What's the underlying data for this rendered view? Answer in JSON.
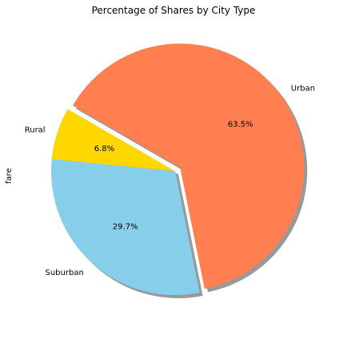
{
  "chart_data": {
    "type": "pie",
    "title": "Percentage of Shares by City Type",
    "ylabel": "fare",
    "shadow": true,
    "start_angle_deg": 150,
    "slices": [
      {
        "label": "Rural",
        "pct_label": "6.8%",
        "value": 6.8,
        "color": "#FFD700",
        "explode": 0
      },
      {
        "label": "Suburban",
        "pct_label": "29.7%",
        "value": 29.7,
        "color": "#87CEEB",
        "explode": 0
      },
      {
        "label": "Urban",
        "pct_label": "63.5%",
        "value": 63.5,
        "color": "#FF7F50",
        "explode": 0.05
      }
    ]
  }
}
